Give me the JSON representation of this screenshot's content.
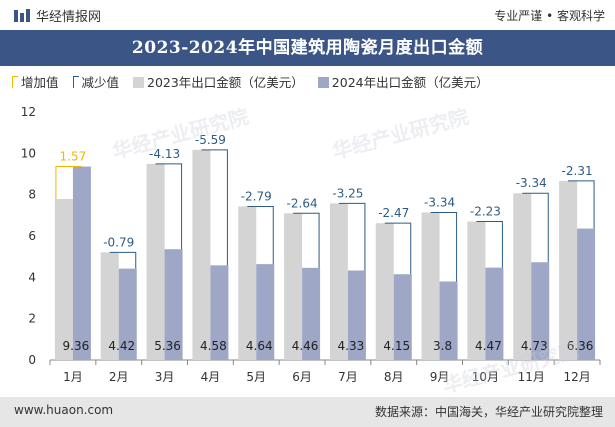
{
  "header": {
    "brand": "华经情报网",
    "tagline": "专业严谨 • 客观科学"
  },
  "chart_data": {
    "type": "bar",
    "title": "2023-2024年中国建筑用陶瓷月度出口金额",
    "categories": [
      "1月",
      "2月",
      "3月",
      "4月",
      "5月",
      "6月",
      "7月",
      "8月",
      "9月",
      "10月",
      "11月",
      "12月"
    ],
    "series": [
      {
        "name": "2023年出口金额（亿美元）",
        "values": [
          7.79,
          5.21,
          9.49,
          10.17,
          7.43,
          7.1,
          7.58,
          6.62,
          7.14,
          6.7,
          8.07,
          8.67
        ]
      },
      {
        "name": "2024年出口金额（亿美元）",
        "values": [
          9.36,
          4.42,
          5.36,
          4.58,
          4.64,
          4.46,
          4.33,
          4.15,
          3.8,
          4.47,
          4.73,
          6.36
        ]
      }
    ],
    "changes": [
      "1.57",
      "-0.79",
      "-4.13",
      "-5.59",
      "-2.79",
      "-2.64",
      "-3.25",
      "-2.47",
      "-3.34",
      "-2.23",
      "-3.34",
      "-2.31"
    ],
    "value_labels_2024": [
      "9.36",
      "4.42",
      "5.36",
      "4.58",
      "4.64",
      "4.46",
      "4.33",
      "4.15",
      "3.8",
      "4.47",
      "4.73",
      "6.36"
    ],
    "legend": [
      "增加值",
      "减少值",
      "2023年出口金额（亿美元）",
      "2024年出口金额（亿美元）"
    ],
    "legend_position": "top-left",
    "ylim": [
      0,
      12
    ],
    "yticks": [
      "0",
      "2",
      "4",
      "6",
      "8",
      "10",
      "12"
    ],
    "grid": false,
    "colors": {
      "bar_2023": "#d4d4d4",
      "bar_2024": "#9ea7c6",
      "increase": "#f0b800",
      "decrease": "#2d5c86",
      "title_bg": "#3b5686"
    }
  },
  "footer": {
    "url": "www.huaon.com",
    "source": "数据来源：中国海关，华经产业研究院整理"
  },
  "watermark": "华经产业研究院"
}
